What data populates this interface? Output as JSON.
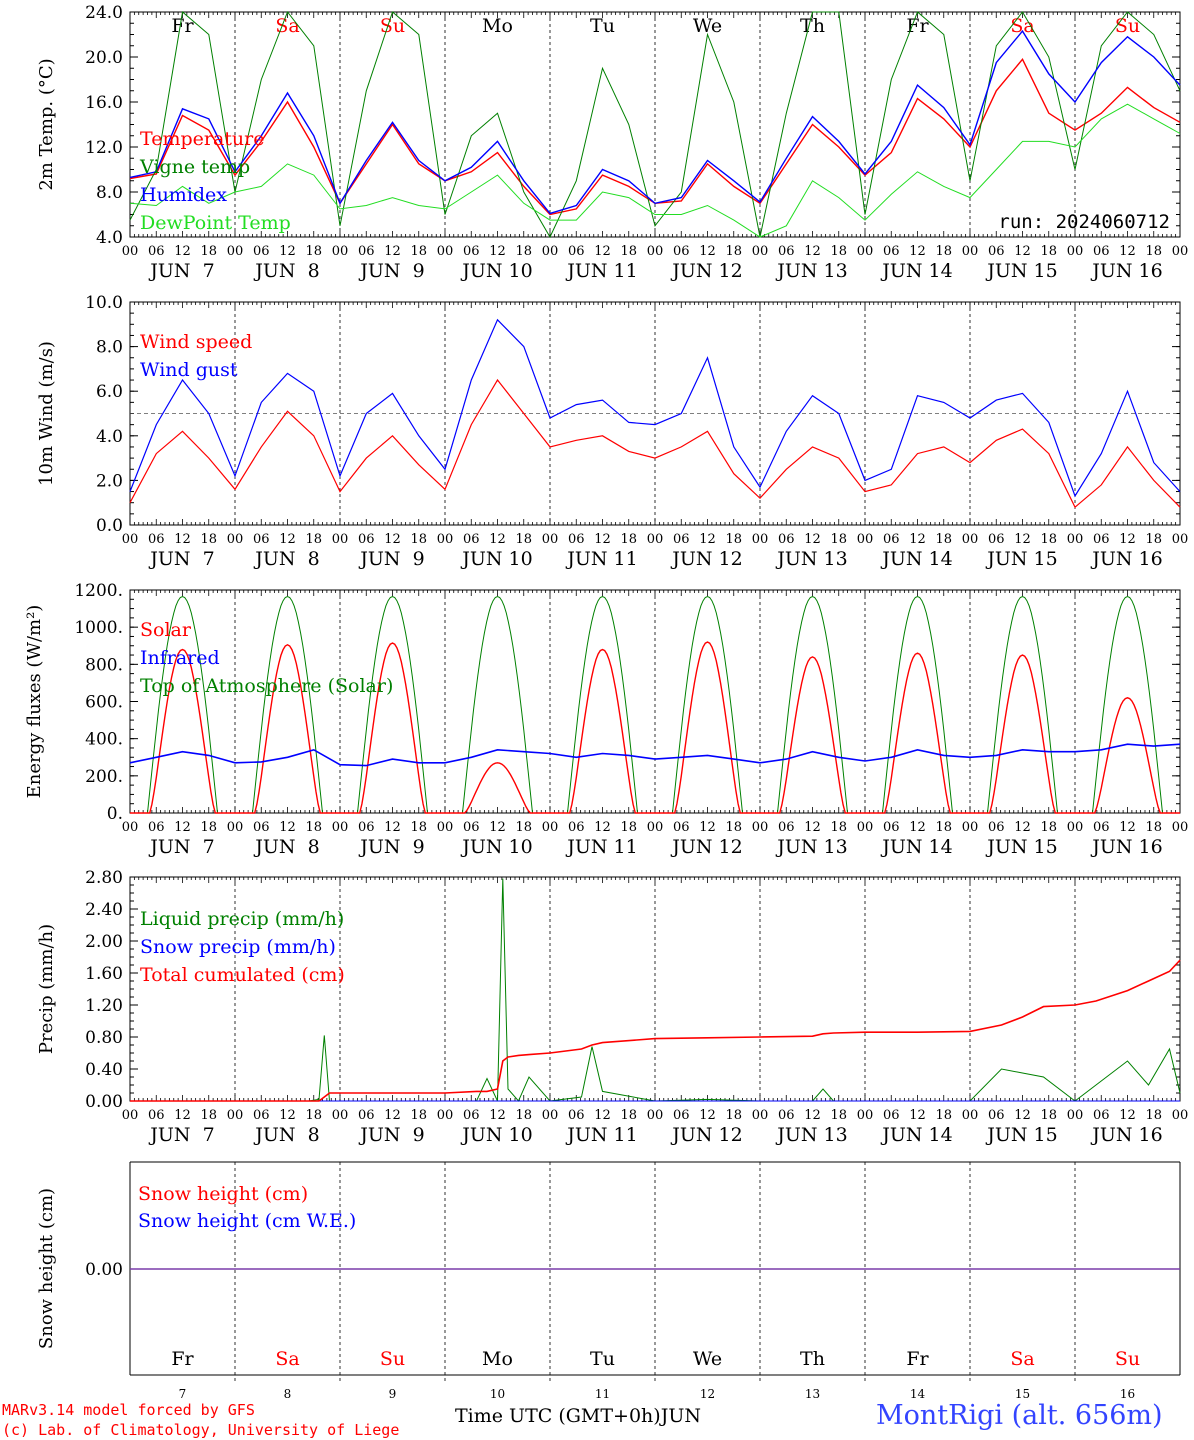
{
  "colors": {
    "temperature": "#ff0000",
    "vigne": "#008000",
    "humidex": "#0000ff",
    "dewpoint": "#22dd22",
    "wind_speed": "#ff0000",
    "wind_gust": "#0000ff",
    "solar": "#ff0000",
    "infrared": "#0000ff",
    "toa": "#008000",
    "liquid": "#008000",
    "snow_precip": "#0000ff",
    "cumulated": "#ff0000",
    "snow_height": "#ff0000",
    "snow_we": "#0000ff",
    "snow_line": "#7a3caa",
    "weekday": "#000000",
    "weekend": "#ff0000"
  },
  "x_axis": {
    "hour_ticks": [
      "00",
      "06",
      "12",
      "18"
    ],
    "end_tick": "00",
    "date_labels": [
      "JUN  7",
      "JUN  8",
      "JUN  9",
      "JUN 10",
      "JUN 11",
      "JUN 12",
      "JUN 13",
      "JUN 14",
      "JUN 15",
      "JUN 16"
    ],
    "day_names": [
      "Fr",
      "Sa",
      "Su",
      "Mo",
      "Tu",
      "We",
      "Th",
      "Fr",
      "Sa",
      "Su"
    ],
    "weekend_flags": [
      false,
      true,
      true,
      false,
      false,
      false,
      false,
      false,
      true,
      true
    ],
    "day_numbers": [
      "7",
      "8",
      "9",
      "10",
      "11",
      "12",
      "13",
      "14",
      "15",
      "16"
    ],
    "n_days": 10
  },
  "footer": {
    "model_line": "MARv3.14 model forced by GFS",
    "credit_line": "(c) Lab. of Climatology, University of Liege",
    "time_label": "Time UTC (GMT+0h)",
    "month_label": "JUN",
    "station": "MontRigi (alt. 656m)"
  },
  "chart_data": [
    {
      "type": "line",
      "ylabel": "2m Temp. (°C)",
      "ylim": [
        4,
        24
      ],
      "y_ticks": [
        "4.0",
        "8.0",
        "12.0",
        "16.0",
        "20.0",
        "24.0"
      ],
      "y_tick_values": [
        4,
        8,
        12,
        16,
        20,
        24
      ],
      "annotation": "run: 2024060712",
      "x_days": [
        0,
        0.25,
        0.5,
        0.75,
        1,
        1.25,
        1.5,
        1.75,
        2,
        2.25,
        2.5,
        2.75,
        3,
        3.25,
        3.5,
        3.75,
        4,
        4.25,
        4.5,
        4.75,
        5,
        5.25,
        5.5,
        5.75,
        6,
        6.25,
        6.5,
        6.75,
        7,
        7.25,
        7.5,
        7.75,
        8,
        8.25,
        8.5,
        8.75,
        9,
        9.25,
        9.5,
        9.75,
        10
      ],
      "series": [
        {
          "name": "Temperature",
          "color_key": "temperature",
          "values": [
            9.2,
            9.6,
            14.8,
            13.5,
            9.5,
            12.5,
            16.0,
            12.0,
            7.0,
            10.5,
            14.0,
            10.5,
            9.0,
            9.8,
            11.5,
            8.5,
            6.0,
            6.5,
            9.5,
            8.5,
            7.0,
            7.2,
            10.5,
            8.5,
            7.0,
            10.5,
            14.0,
            12.0,
            9.5,
            11.5,
            16.3,
            14.5,
            12.0,
            17.0,
            19.8,
            15.0,
            13.5,
            15.0,
            17.3,
            15.5,
            14.2
          ]
        },
        {
          "name": "Vigne temp",
          "color_key": "vigne",
          "values": [
            5.5,
            10.0,
            24.0,
            22.0,
            8.0,
            18.0,
            24.0,
            21.0,
            5.0,
            17.0,
            24.0,
            22.0,
            6.0,
            13.0,
            15.0,
            8.0,
            4.0,
            9.0,
            19.0,
            14.0,
            5.0,
            8.0,
            22.0,
            16.0,
            4.0,
            15.0,
            24.0,
            24.0,
            6.0,
            18.0,
            24.0,
            22.0,
            9.0,
            21.0,
            24.0,
            20.0,
            10.0,
            21.0,
            24.0,
            22.0,
            17.0
          ]
        },
        {
          "name": "Humidex",
          "color_key": "humidex",
          "values": [
            9.3,
            9.8,
            15.4,
            14.5,
            9.8,
            13.0,
            16.8,
            13.0,
            7.0,
            10.8,
            14.2,
            10.8,
            9.0,
            10.2,
            12.5,
            9.0,
            6.1,
            6.8,
            10.0,
            9.0,
            7.0,
            7.5,
            10.8,
            9.0,
            7.1,
            11.0,
            14.7,
            12.5,
            9.6,
            12.5,
            17.5,
            15.5,
            12.2,
            19.5,
            22.3,
            18.5,
            16.0,
            19.5,
            21.8,
            20.0,
            17.5
          ]
        },
        {
          "name": "DewPoint Temp",
          "color_key": "dewpoint",
          "values": [
            7.0,
            6.8,
            8.5,
            7.0,
            8.0,
            8.5,
            10.5,
            9.5,
            6.5,
            6.8,
            7.5,
            6.8,
            6.5,
            8.0,
            9.5,
            7.0,
            5.5,
            5.5,
            8.0,
            7.5,
            6.0,
            6.0,
            6.8,
            5.5,
            4.0,
            5.0,
            9.0,
            7.5,
            5.5,
            7.8,
            9.8,
            8.5,
            7.5,
            10.0,
            12.5,
            12.5,
            12.0,
            14.5,
            15.8,
            14.5,
            13.2
          ]
        }
      ]
    },
    {
      "type": "line",
      "ylabel": "10m Wind (m/s)",
      "ylim": [
        0,
        10
      ],
      "y_ticks": [
        "0.0",
        "2.0",
        "4.0",
        "6.0",
        "8.0",
        "10.0"
      ],
      "y_tick_values": [
        0,
        2,
        4,
        6,
        8,
        10
      ],
      "reference_line": 5,
      "x_days": [
        0,
        0.25,
        0.5,
        0.75,
        1,
        1.25,
        1.5,
        1.75,
        2,
        2.25,
        2.5,
        2.75,
        3,
        3.25,
        3.5,
        3.75,
        4,
        4.25,
        4.5,
        4.75,
        5,
        5.25,
        5.5,
        5.75,
        6,
        6.25,
        6.5,
        6.75,
        7,
        7.25,
        7.5,
        7.75,
        8,
        8.25,
        8.5,
        8.75,
        9,
        9.25,
        9.5,
        9.75,
        10
      ],
      "series": [
        {
          "name": "Wind speed",
          "color_key": "wind_speed",
          "values": [
            1.0,
            3.2,
            4.2,
            3.0,
            1.6,
            3.5,
            5.1,
            4.0,
            1.5,
            3.0,
            4.0,
            2.7,
            1.6,
            4.5,
            6.5,
            5.0,
            3.5,
            3.8,
            4.0,
            3.3,
            3.0,
            3.5,
            4.2,
            2.3,
            1.2,
            2.5,
            3.5,
            3.0,
            1.5,
            1.8,
            3.2,
            3.5,
            2.8,
            3.8,
            4.3,
            3.2,
            0.8,
            1.8,
            3.5,
            2.0,
            0.8
          ]
        },
        {
          "name": "Wind gust",
          "color_key": "wind_gust",
          "values": [
            1.5,
            4.5,
            6.5,
            5.0,
            2.2,
            5.5,
            6.8,
            6.0,
            2.2,
            5.0,
            5.9,
            4.0,
            2.5,
            6.5,
            9.2,
            8.0,
            4.8,
            5.4,
            5.6,
            4.6,
            4.5,
            5.0,
            7.5,
            3.5,
            1.7,
            4.2,
            5.8,
            5.0,
            2.0,
            2.5,
            5.8,
            5.5,
            4.8,
            5.6,
            5.9,
            4.6,
            1.3,
            3.2,
            6.0,
            2.8,
            1.5
          ]
        }
      ]
    },
    {
      "type": "line",
      "ylabel": "Energy fluxes (W/m²)",
      "ylim": [
        0,
        1200
      ],
      "y_ticks": [
        "0.",
        "200.",
        "400.",
        "600.",
        "800.",
        "1000.",
        "1200."
      ],
      "y_tick_values": [
        0,
        200,
        400,
        600,
        800,
        1000,
        1200
      ],
      "legend": [
        "Solar",
        "Infrared",
        "Top of Atmosphere (Solar)"
      ],
      "toa_peak": 1165,
      "toa_halfwidth_hours": 8,
      "solar_peaks_w_m2": [
        880,
        905,
        915,
        270,
        880,
        920,
        840,
        860,
        850,
        620
      ],
      "x_days": [
        0,
        0.25,
        0.5,
        0.75,
        1,
        1.25,
        1.5,
        1.75,
        2,
        2.25,
        2.5,
        2.75,
        3,
        3.25,
        3.5,
        3.75,
        4,
        4.25,
        4.5,
        4.75,
        5,
        5.25,
        5.5,
        5.75,
        6,
        6.25,
        6.5,
        6.75,
        7,
        7.25,
        7.5,
        7.75,
        8,
        8.25,
        8.5,
        8.75,
        9,
        9.25,
        9.5,
        9.75,
        10
      ],
      "infrared_values": [
        270,
        300,
        330,
        310,
        270,
        275,
        300,
        340,
        260,
        255,
        290,
        270,
        270,
        300,
        340,
        330,
        320,
        300,
        320,
        310,
        290,
        300,
        310,
        290,
        270,
        290,
        330,
        300,
        280,
        300,
        340,
        310,
        300,
        310,
        340,
        330,
        330,
        340,
        370,
        360,
        370
      ]
    },
    {
      "type": "line",
      "ylabel": "Precip (mm/h)",
      "ylim": [
        0,
        2.8
      ],
      "y_ticks": [
        "0.00",
        "0.40",
        "0.80",
        "1.20",
        "1.60",
        "2.00",
        "2.40",
        "2.80"
      ],
      "y_tick_values": [
        0,
        0.4,
        0.8,
        1.2,
        1.6,
        2.0,
        2.4,
        2.8
      ],
      "x_days": [
        0,
        0.5,
        1,
        1.5,
        1.7,
        1.8,
        1.85,
        1.9,
        2,
        2.5,
        3,
        3.3,
        3.4,
        3.5,
        3.55,
        3.6,
        3.7,
        3.8,
        4,
        4.3,
        4.4,
        4.5,
        5,
        5.5,
        6,
        6.5,
        6.6,
        6.7,
        7,
        7.5,
        8,
        8.3,
        8.5,
        8.7,
        9,
        9.2,
        9.5,
        9.7,
        9.9,
        10
      ],
      "series": [
        {
          "name": "Liquid precip (mm/h)",
          "color_key": "liquid",
          "values": [
            0,
            0,
            0,
            0,
            0,
            0.02,
            0.82,
            0,
            0,
            0,
            0,
            0,
            0.28,
            0,
            2.78,
            0.15,
            0,
            0.3,
            0,
            0.05,
            0.68,
            0.12,
            0,
            0.02,
            0,
            0,
            0.15,
            0,
            0,
            0,
            0,
            0.4,
            0.35,
            0.3,
            0,
            0.2,
            0.5,
            0.2,
            0.65,
            0.1
          ]
        },
        {
          "name": "Snow precip (mm/h)",
          "color_key": "snow_precip",
          "values": [
            0,
            0,
            0,
            0,
            0,
            0,
            0,
            0,
            0,
            0,
            0,
            0,
            0,
            0,
            0,
            0,
            0,
            0,
            0,
            0,
            0,
            0,
            0,
            0,
            0,
            0,
            0,
            0,
            0,
            0,
            0,
            0,
            0,
            0,
            0,
            0,
            0,
            0,
            0,
            0
          ]
        },
        {
          "name": "Total cumulated (cm)",
          "color_key": "cumulated",
          "values": [
            0,
            0,
            0,
            0,
            0,
            0,
            0.05,
            0.1,
            0.1,
            0.1,
            0.1,
            0.12,
            0.12,
            0.15,
            0.5,
            0.55,
            0.57,
            0.58,
            0.6,
            0.65,
            0.7,
            0.73,
            0.78,
            0.79,
            0.8,
            0.81,
            0.84,
            0.85,
            0.86,
            0.86,
            0.87,
            0.95,
            1.05,
            1.18,
            1.2,
            1.25,
            1.38,
            1.5,
            1.62,
            1.76
          ]
        }
      ]
    },
    {
      "type": "line",
      "ylabel": "Snow height (cm)",
      "y_ticks": [
        "0.00"
      ],
      "series": [
        {
          "name": "Snow height (cm)",
          "color_key": "snow_height",
          "values": [
            0,
            0
          ]
        },
        {
          "name": "Snow height (cm W.E.)",
          "color_key": "snow_we",
          "values": [
            0,
            0
          ]
        }
      ]
    }
  ]
}
